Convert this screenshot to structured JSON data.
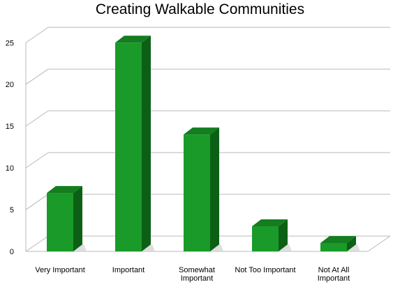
{
  "chart_data": {
    "type": "bar",
    "title": "Creating Walkable Communities",
    "xlabel": "",
    "ylabel": "",
    "categories": [
      [
        "Very Important"
      ],
      [
        "Important"
      ],
      [
        "Somewhat",
        "Important"
      ],
      [
        "Not Too Important"
      ],
      [
        "Not At All",
        "Important"
      ]
    ],
    "values": [
      7,
      25,
      14,
      3,
      1
    ],
    "ylim": [
      0,
      25
    ],
    "yticks": [
      "0",
      "5",
      "10",
      "15",
      "20",
      "25"
    ],
    "grid": true,
    "legend": "none",
    "colors": {
      "front": "#1a9a28",
      "side": "#0c6015",
      "top": "#147d1f",
      "grid": "#b8b8b8"
    }
  }
}
